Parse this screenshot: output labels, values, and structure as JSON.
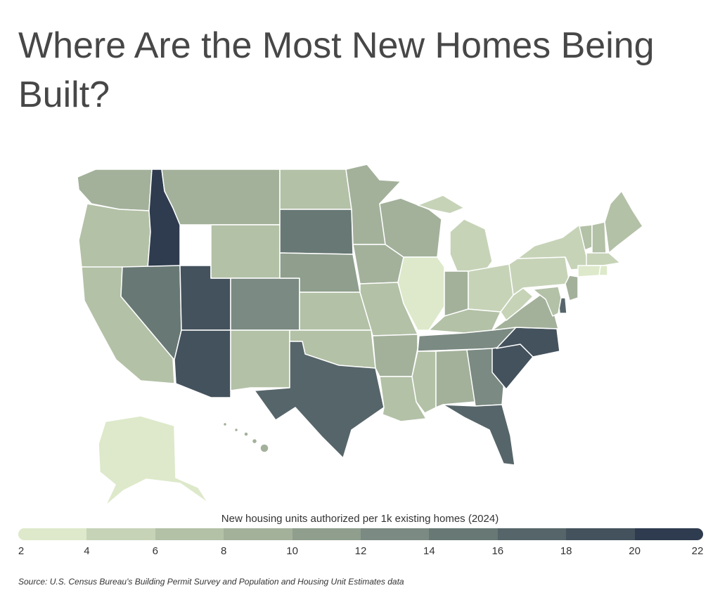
{
  "title": "Where Are the Most New Homes Being Built?",
  "legend": {
    "title": "New housing units authorized per 1k existing homes (2024)",
    "min": 2,
    "max": 22,
    "ticks": [
      "2",
      "4",
      "6",
      "8",
      "10",
      "12",
      "14",
      "16",
      "18",
      "20",
      "22"
    ],
    "colors": [
      "#dde9ca",
      "#c6d3b7",
      "#b3c1a7",
      "#a3b19b",
      "#8f9e8d",
      "#7b8a82",
      "#687875",
      "#566569",
      "#44525d",
      "#2f3c4f"
    ]
  },
  "source": "Source: U.S. Census Bureau's Building Permit Survey and Population and Housing Unit Estimates data",
  "states": [
    {
      "id": "WA",
      "value": 9.5
    },
    {
      "id": "OR",
      "value": 7
    },
    {
      "id": "CA",
      "value": 6
    },
    {
      "id": "ID",
      "value": 21
    },
    {
      "id": "NV",
      "value": 14.5
    },
    {
      "id": "UT",
      "value": 19
    },
    {
      "id": "AZ",
      "value": 19
    },
    {
      "id": "MT",
      "value": 8.5
    },
    {
      "id": "WY",
      "value": 6.5
    },
    {
      "id": "CO",
      "value": 13
    },
    {
      "id": "NM",
      "value": 6.5
    },
    {
      "id": "ND",
      "value": 6.5
    },
    {
      "id": "SD",
      "value": 15
    },
    {
      "id": "NE",
      "value": 11
    },
    {
      "id": "KS",
      "value": 6.5
    },
    {
      "id": "OK",
      "value": 7
    },
    {
      "id": "TX",
      "value": 17
    },
    {
      "id": "MN",
      "value": 9
    },
    {
      "id": "IA",
      "value": 8.5
    },
    {
      "id": "MO",
      "value": 7
    },
    {
      "id": "AR",
      "value": 9
    },
    {
      "id": "LA",
      "value": 6.5
    },
    {
      "id": "WI",
      "value": 8.5
    },
    {
      "id": "IL",
      "value": 3
    },
    {
      "id": "MI",
      "value": 5
    },
    {
      "id": "IN",
      "value": 9
    },
    {
      "id": "OH",
      "value": 5
    },
    {
      "id": "KY",
      "value": 6.5
    },
    {
      "id": "TN",
      "value": 13
    },
    {
      "id": "MS",
      "value": 6
    },
    {
      "id": "AL",
      "value": 9
    },
    {
      "id": "GA",
      "value": 13
    },
    {
      "id": "FL",
      "value": 17
    },
    {
      "id": "SC",
      "value": 19
    },
    {
      "id": "NC",
      "value": 19
    },
    {
      "id": "VA",
      "value": 9.5
    },
    {
      "id": "WV",
      "value": 5
    },
    {
      "id": "PA",
      "value": 5
    },
    {
      "id": "NY",
      "value": 5
    },
    {
      "id": "VT",
      "value": 7.5
    },
    {
      "id": "NH",
      "value": 7.5
    },
    {
      "id": "ME",
      "value": 7.5
    },
    {
      "id": "MA",
      "value": 5
    },
    {
      "id": "RI",
      "value": 3
    },
    {
      "id": "CT",
      "value": 3
    },
    {
      "id": "NJ",
      "value": 9
    },
    {
      "id": "DE",
      "value": 17
    },
    {
      "id": "MD",
      "value": 7
    },
    {
      "id": "AK",
      "value": 3
    },
    {
      "id": "HI",
      "value": 9.5
    }
  ]
}
